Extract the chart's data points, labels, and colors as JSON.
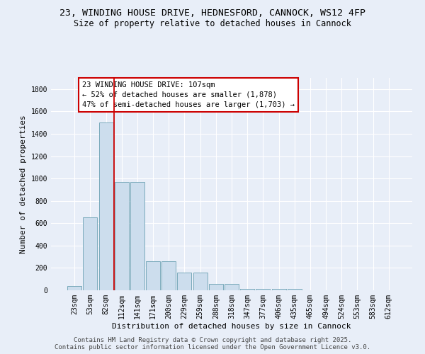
{
  "title_line1": "23, WINDING HOUSE DRIVE, HEDNESFORD, CANNOCK, WS12 4FP",
  "title_line2": "Size of property relative to detached houses in Cannock",
  "xlabel": "Distribution of detached houses by size in Cannock",
  "ylabel": "Number of detached properties",
  "categories": [
    "23sqm",
    "53sqm",
    "82sqm",
    "112sqm",
    "141sqm",
    "171sqm",
    "200sqm",
    "229sqm",
    "259sqm",
    "288sqm",
    "318sqm",
    "347sqm",
    "377sqm",
    "406sqm",
    "435sqm",
    "465sqm",
    "494sqm",
    "524sqm",
    "553sqm",
    "583sqm",
    "612sqm"
  ],
  "values": [
    40,
    650,
    1500,
    970,
    970,
    260,
    260,
    160,
    160,
    60,
    60,
    15,
    15,
    12,
    12,
    0,
    0,
    0,
    0,
    0,
    0
  ],
  "bar_color": "#ccdded",
  "bar_edge_color": "#7aaabb",
  "vline_color": "#cc0000",
  "annotation_text": "23 WINDING HOUSE DRIVE: 107sqm\n← 52% of detached houses are smaller (1,878)\n47% of semi-detached houses are larger (1,703) →",
  "annotation_box_color": "white",
  "annotation_box_edge": "#cc0000",
  "ylim": [
    0,
    1900
  ],
  "yticks": [
    0,
    200,
    400,
    600,
    800,
    1000,
    1200,
    1400,
    1600,
    1800
  ],
  "bg_color": "#e8eef8",
  "plot_bg_color": "#e8eef8",
  "footer_line1": "Contains HM Land Registry data © Crown copyright and database right 2025.",
  "footer_line2": "Contains public sector information licensed under the Open Government Licence v3.0.",
  "title_fontsize": 9.5,
  "subtitle_fontsize": 8.5,
  "axis_label_fontsize": 8,
  "tick_fontsize": 7,
  "annotation_fontsize": 7.5,
  "footer_fontsize": 6.5
}
